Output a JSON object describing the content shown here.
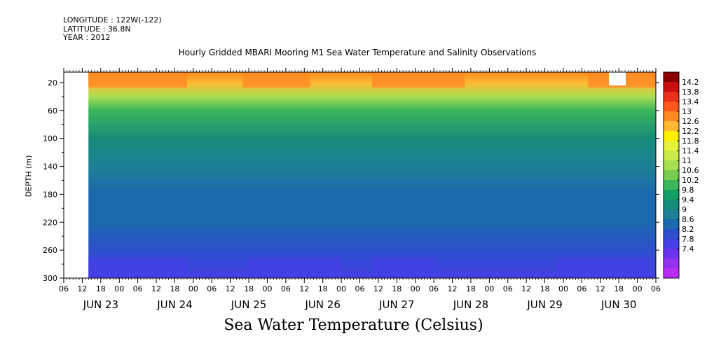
{
  "header": {
    "longitude": "LONGITUDE : 122W(-122)",
    "latitude": "LATITUDE : 36.8N",
    "year": "YEAR : 2012"
  },
  "footer_title": "Sea Water Temperature (Celsius)",
  "chart_data": {
    "type": "heatmap",
    "title": "Hourly Gridded MBARI Mooring M1 Sea Water Temperature and Salinity Observations",
    "ylabel": "DEPTH (m)",
    "xlabel": "",
    "ylim": [
      300,
      5
    ],
    "y_ticks": [
      20,
      60,
      100,
      140,
      180,
      220,
      260,
      300
    ],
    "x_range_hours": "2012-06-23 06:00 to 2012-06-30 08:00",
    "x_hour_ticks": [
      "06",
      "12",
      "18",
      "00",
      "06",
      "12",
      "18",
      "00",
      "06",
      "12",
      "18",
      "00",
      "06",
      "12",
      "18",
      "00",
      "06",
      "12",
      "18",
      "00",
      "06",
      "12",
      "18",
      "00",
      "06",
      "12",
      "18",
      "00",
      "06",
      "12",
      "18",
      "00",
      "06"
    ],
    "x_day_labels": [
      "JUN 23",
      "JUN 24",
      "JUN 25",
      "JUN 26",
      "JUN 27",
      "JUN 28",
      "JUN 29",
      "JUN 30"
    ],
    "colorbar_levels": [
      "14.2",
      "13.8",
      "13.4",
      "13",
      "12.6",
      "12.2",
      "11.8",
      "11.4",
      "11",
      "10.6",
      "10.2",
      "9.8",
      "9.4",
      "9",
      "8.6",
      "8.2",
      "7.8",
      "7.4"
    ],
    "colorbar_colors": [
      "#8b0000",
      "#c81010",
      "#e8301a",
      "#ff5a1e",
      "#ff8a22",
      "#ffb830",
      "#fff000",
      "#e4f23c",
      "#c8ec4a",
      "#a8de54",
      "#78cc50",
      "#3cb65a",
      "#14a064",
      "#168c7a",
      "#1e8096",
      "#1c68ae",
      "#2c50cc",
      "#4640e6",
      "#6a34ec",
      "#9430f0",
      "#b82cf4"
    ],
    "depth_profile": [
      {
        "depth": 5,
        "temp": 12.9
      },
      {
        "depth": 20,
        "temp": 12.2
      },
      {
        "depth": 40,
        "temp": 10.8
      },
      {
        "depth": 60,
        "temp": 10.0
      },
      {
        "depth": 100,
        "temp": 9.3
      },
      {
        "depth": 140,
        "temp": 8.9
      },
      {
        "depth": 180,
        "temp": 8.5
      },
      {
        "depth": 220,
        "temp": 8.2
      },
      {
        "depth": 260,
        "temp": 7.9
      },
      {
        "depth": 300,
        "temp": 7.6
      }
    ],
    "grid": false
  }
}
